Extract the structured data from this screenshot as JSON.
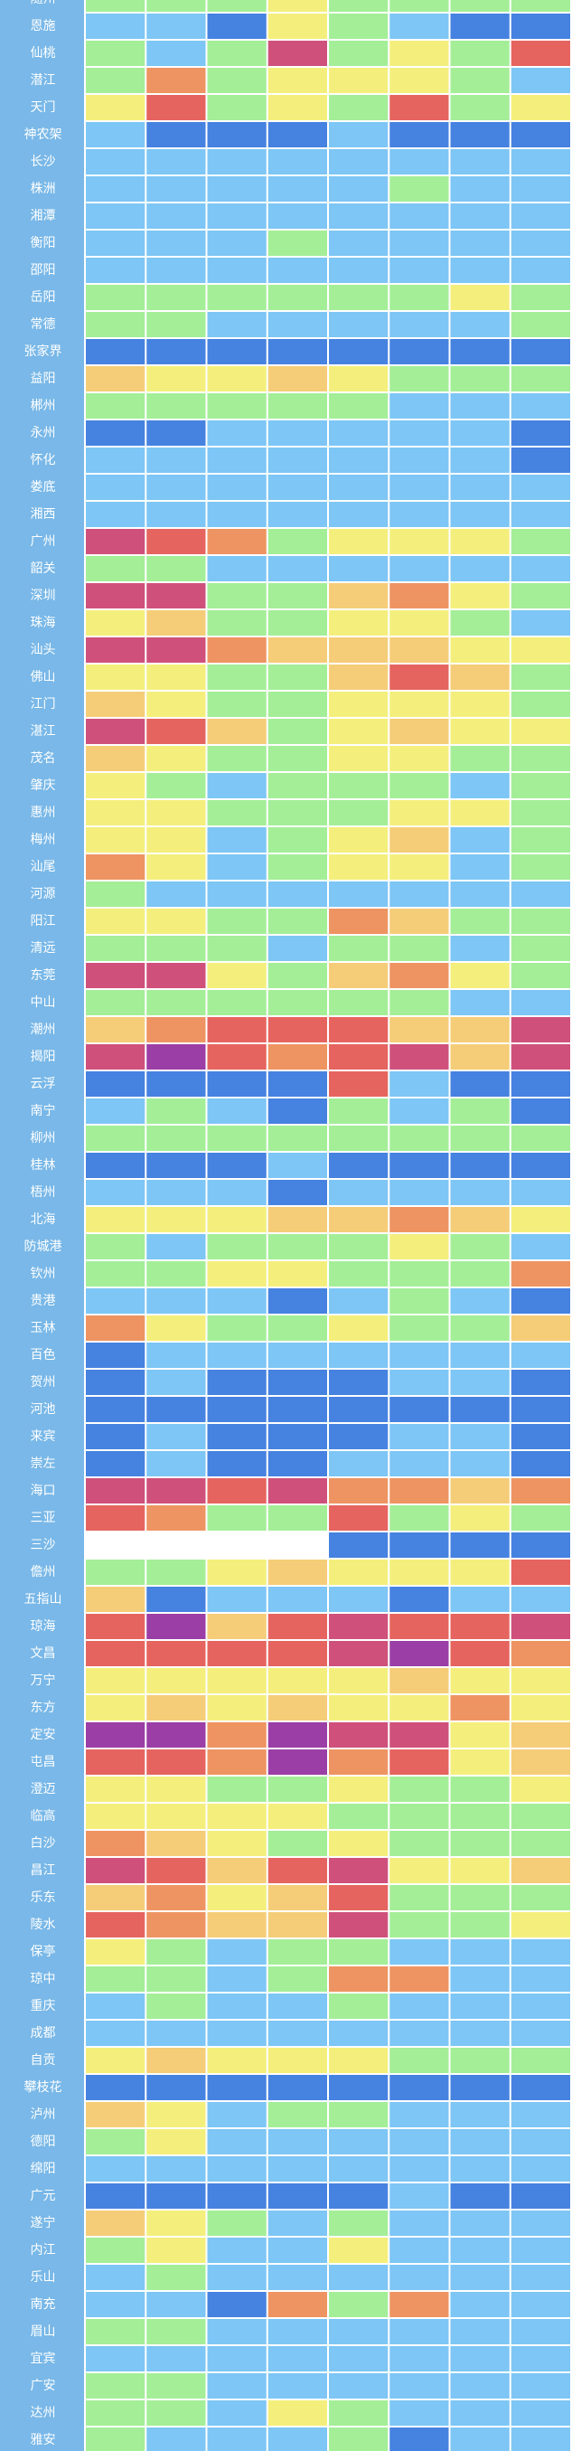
{
  "chart_data": {
    "type": "heatmap",
    "colors": [
      "#4682e0",
      "#7dc6f5",
      "#a4ee98",
      "#f4ef7c",
      "#f5cd78",
      "#ee9462",
      "#e6645f",
      "#cf517b",
      "#9b3ea6"
    ],
    "categories": [
      "随州",
      "恩施",
      "仙桃",
      "潜江",
      "天门",
      "神农架",
      "长沙",
      "株洲",
      "湘潭",
      "衡阳",
      "邵阳",
      "岳阳",
      "常德",
      "张家界",
      "益阳",
      "郴州",
      "永州",
      "怀化",
      "娄底",
      "湘西",
      "广州",
      "韶关",
      "深圳",
      "珠海",
      "汕头",
      "佛山",
      "江门",
      "湛江",
      "茂名",
      "肇庆",
      "惠州",
      "梅州",
      "汕尾",
      "河源",
      "阳江",
      "清远",
      "东莞",
      "中山",
      "潮州",
      "揭阳",
      "云浮",
      "南宁",
      "柳州",
      "桂林",
      "梧州",
      "北海",
      "防城港",
      "钦州",
      "贵港",
      "玉林",
      "百色",
      "贺州",
      "河池",
      "来宾",
      "崇左",
      "海口",
      "三亚",
      "三沙",
      "儋州",
      "五指山",
      "琼海",
      "文昌",
      "万宁",
      "东方",
      "定安",
      "屯昌",
      "澄迈",
      "临高",
      "白沙",
      "昌江",
      "乐东",
      "陵水",
      "保亭",
      "琼中",
      "重庆",
      "成都",
      "自贡",
      "攀枝花",
      "泸州",
      "德阳",
      "绵阳",
      "广元",
      "遂宁",
      "内江",
      "乐山",
      "南充",
      "眉山",
      "宜宾",
      "广安",
      "达州",
      "雅安"
    ],
    "values": [
      [
        2,
        2,
        2,
        3,
        2,
        2,
        2,
        2
      ],
      [
        1,
        1,
        0,
        3,
        2,
        1,
        0,
        0
      ],
      [
        2,
        1,
        2,
        7,
        2,
        3,
        2,
        6
      ],
      [
        2,
        5,
        2,
        3,
        3,
        3,
        2,
        1
      ],
      [
        3,
        6,
        2,
        3,
        2,
        6,
        2,
        3
      ],
      [
        1,
        0,
        0,
        0,
        1,
        0,
        0,
        0
      ],
      [
        1,
        1,
        1,
        1,
        1,
        1,
        1,
        1
      ],
      [
        1,
        1,
        1,
        1,
        1,
        2,
        1,
        1
      ],
      [
        1,
        1,
        1,
        1,
        1,
        1,
        1,
        1
      ],
      [
        1,
        1,
        1,
        2,
        1,
        1,
        1,
        1
      ],
      [
        1,
        1,
        1,
        1,
        1,
        1,
        1,
        1
      ],
      [
        2,
        2,
        2,
        2,
        2,
        2,
        3,
        2
      ],
      [
        2,
        2,
        1,
        1,
        1,
        1,
        1,
        2
      ],
      [
        0,
        0,
        0,
        0,
        0,
        0,
        0,
        0
      ],
      [
        4,
        3,
        3,
        4,
        3,
        2,
        2,
        2
      ],
      [
        2,
        2,
        2,
        2,
        2,
        1,
        1,
        1
      ],
      [
        0,
        0,
        1,
        1,
        1,
        1,
        1,
        0
      ],
      [
        1,
        1,
        1,
        1,
        1,
        1,
        1,
        0
      ],
      [
        1,
        1,
        1,
        1,
        1,
        1,
        1,
        1
      ],
      [
        1,
        1,
        1,
        1,
        1,
        1,
        1,
        1
      ],
      [
        7,
        6,
        5,
        2,
        3,
        3,
        3,
        2
      ],
      [
        2,
        2,
        1,
        1,
        1,
        1,
        1,
        1
      ],
      [
        7,
        7,
        2,
        2,
        4,
        5,
        3,
        2
      ],
      [
        3,
        4,
        2,
        2,
        3,
        3,
        2,
        1
      ],
      [
        7,
        7,
        5,
        4,
        4,
        4,
        3,
        3
      ],
      [
        3,
        3,
        2,
        2,
        4,
        6,
        4,
        2
      ],
      [
        4,
        3,
        2,
        2,
        3,
        3,
        3,
        2
      ],
      [
        7,
        6,
        4,
        2,
        3,
        4,
        3,
        3
      ],
      [
        4,
        3,
        2,
        2,
        3,
        3,
        2,
        2
      ],
      [
        3,
        2,
        1,
        2,
        2,
        2,
        1,
        2
      ],
      [
        3,
        3,
        2,
        2,
        2,
        3,
        3,
        2
      ],
      [
        3,
        3,
        1,
        2,
        3,
        4,
        1,
        2
      ],
      [
        5,
        3,
        1,
        2,
        3,
        3,
        1,
        2
      ],
      [
        2,
        1,
        1,
        1,
        1,
        1,
        1,
        1
      ],
      [
        3,
        3,
        2,
        2,
        5,
        4,
        2,
        2
      ],
      [
        2,
        2,
        2,
        1,
        2,
        2,
        1,
        2
      ],
      [
        7,
        7,
        3,
        2,
        4,
        5,
        3,
        2
      ],
      [
        2,
        2,
        2,
        2,
        2,
        2,
        1,
        1
      ],
      [
        4,
        5,
        6,
        6,
        6,
        4,
        4,
        7
      ],
      [
        7,
        8,
        6,
        5,
        6,
        7,
        4,
        7
      ],
      [
        0,
        0,
        0,
        0,
        6,
        1,
        0,
        0
      ],
      [
        1,
        2,
        1,
        0,
        2,
        1,
        2,
        0
      ],
      [
        2,
        2,
        2,
        2,
        2,
        2,
        2,
        2
      ],
      [
        0,
        0,
        0,
        1,
        0,
        0,
        0,
        0
      ],
      [
        1,
        1,
        1,
        0,
        1,
        1,
        1,
        1
      ],
      [
        3,
        3,
        3,
        4,
        4,
        5,
        4,
        3
      ],
      [
        2,
        1,
        2,
        2,
        2,
        3,
        2,
        1
      ],
      [
        2,
        2,
        3,
        3,
        2,
        2,
        2,
        5
      ],
      [
        1,
        1,
        1,
        0,
        1,
        2,
        1,
        0
      ],
      [
        5,
        3,
        2,
        2,
        3,
        2,
        2,
        4
      ],
      [
        0,
        1,
        1,
        1,
        1,
        1,
        1,
        1
      ],
      [
        0,
        1,
        0,
        0,
        0,
        1,
        1,
        0
      ],
      [
        0,
        0,
        0,
        0,
        0,
        0,
        0,
        0
      ],
      [
        0,
        1,
        0,
        0,
        0,
        1,
        1,
        0
      ],
      [
        0,
        1,
        0,
        0,
        1,
        1,
        1,
        0
      ],
      [
        7,
        7,
        6,
        7,
        5,
        5,
        4,
        5
      ],
      [
        6,
        5,
        2,
        2,
        6,
        2,
        3,
        2
      ],
      [
        null,
        null,
        null,
        null,
        0,
        0,
        0,
        0
      ],
      [
        2,
        2,
        3,
        4,
        3,
        3,
        3,
        6
      ],
      [
        4,
        0,
        1,
        1,
        1,
        0,
        1,
        1
      ],
      [
        6,
        8,
        4,
        6,
        7,
        6,
        6,
        7
      ],
      [
        6,
        6,
        6,
        6,
        7,
        8,
        6,
        5
      ],
      [
        3,
        3,
        3,
        3,
        3,
        4,
        3,
        3
      ],
      [
        3,
        4,
        3,
        4,
        3,
        3,
        5,
        3
      ],
      [
        8,
        8,
        5,
        8,
        7,
        7,
        3,
        4
      ],
      [
        6,
        6,
        5,
        8,
        5,
        6,
        3,
        4
      ],
      [
        3,
        3,
        2,
        2,
        3,
        2,
        2,
        3
      ],
      [
        3,
        3,
        3,
        3,
        2,
        2,
        2,
        2
      ],
      [
        5,
        4,
        3,
        2,
        3,
        2,
        2,
        2
      ],
      [
        7,
        6,
        4,
        6,
        7,
        3,
        3,
        4
      ],
      [
        4,
        5,
        3,
        4,
        6,
        2,
        2,
        2
      ],
      [
        6,
        5,
        4,
        4,
        7,
        2,
        2,
        3
      ],
      [
        3,
        2,
        1,
        2,
        2,
        1,
        1,
        1
      ],
      [
        2,
        2,
        1,
        2,
        5,
        5,
        1,
        1
      ],
      [
        1,
        2,
        1,
        1,
        2,
        1,
        1,
        1
      ],
      [
        1,
        1,
        1,
        1,
        1,
        1,
        1,
        1
      ],
      [
        3,
        4,
        3,
        3,
        3,
        2,
        2,
        2
      ],
      [
        0,
        0,
        0,
        0,
        0,
        0,
        0,
        0
      ],
      [
        4,
        3,
        1,
        2,
        2,
        1,
        1,
        1
      ],
      [
        2,
        3,
        1,
        1,
        1,
        1,
        1,
        1
      ],
      [
        1,
        1,
        1,
        1,
        1,
        1,
        1,
        1
      ],
      [
        0,
        0,
        0,
        0,
        0,
        1,
        0,
        0
      ],
      [
        4,
        3,
        2,
        1,
        2,
        1,
        1,
        1
      ],
      [
        2,
        3,
        1,
        1,
        3,
        1,
        1,
        1
      ],
      [
        1,
        2,
        1,
        1,
        1,
        1,
        1,
        1
      ],
      [
        1,
        1,
        0,
        5,
        2,
        5,
        1,
        1
      ],
      [
        2,
        2,
        1,
        1,
        1,
        1,
        1,
        1
      ],
      [
        1,
        1,
        1,
        1,
        1,
        1,
        1,
        1
      ],
      [
        2,
        2,
        1,
        1,
        1,
        1,
        1,
        1
      ],
      [
        2,
        2,
        1,
        3,
        2,
        1,
        1,
        1
      ],
      [
        2,
        1,
        1,
        1,
        2,
        0,
        1,
        1
      ]
    ]
  }
}
